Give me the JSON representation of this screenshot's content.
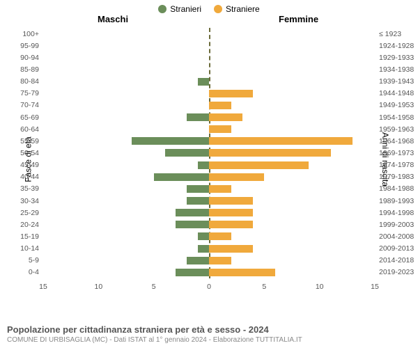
{
  "legend": {
    "male": "Stranieri",
    "female": "Straniere"
  },
  "headers": {
    "male": "Maschi",
    "female": "Femmine"
  },
  "axis": {
    "left_label": "Fasce di età",
    "right_label": "Anni di nascita"
  },
  "colors": {
    "male": "#6b8e5a",
    "female": "#f0a93c",
    "background": "#ffffff",
    "zero_line": "#6b6b3a",
    "tick_text": "#555555"
  },
  "caption": {
    "title": "Popolazione per cittadinanza straniera per età e sesso - 2024",
    "sub": "COMUNE DI URBISAGLIA (MC) - Dati ISTAT al 1° gennaio 2024 - Elaborazione TUTTITALIA.IT"
  },
  "x_ticks": [
    -15,
    -10,
    -5,
    0,
    5,
    10,
    15
  ],
  "x_max": 15,
  "rows": [
    {
      "age": "100+",
      "birth": "≤ 1923",
      "m": 0,
      "f": 0
    },
    {
      "age": "95-99",
      "birth": "1924-1928",
      "m": 0,
      "f": 0
    },
    {
      "age": "90-94",
      "birth": "1929-1933",
      "m": 0,
      "f": 0
    },
    {
      "age": "85-89",
      "birth": "1934-1938",
      "m": 0,
      "f": 0
    },
    {
      "age": "80-84",
      "birth": "1939-1943",
      "m": 1,
      "f": 0
    },
    {
      "age": "75-79",
      "birth": "1944-1948",
      "m": 0,
      "f": 4
    },
    {
      "age": "70-74",
      "birth": "1949-1953",
      "m": 0,
      "f": 2
    },
    {
      "age": "65-69",
      "birth": "1954-1958",
      "m": 2,
      "f": 3
    },
    {
      "age": "60-64",
      "birth": "1959-1963",
      "m": 0,
      "f": 2
    },
    {
      "age": "55-59",
      "birth": "1964-1968",
      "m": 7,
      "f": 13
    },
    {
      "age": "50-54",
      "birth": "1969-1973",
      "m": 4,
      "f": 11
    },
    {
      "age": "45-49",
      "birth": "1974-1978",
      "m": 1,
      "f": 9
    },
    {
      "age": "40-44",
      "birth": "1979-1983",
      "m": 5,
      "f": 5
    },
    {
      "age": "35-39",
      "birth": "1984-1988",
      "m": 2,
      "f": 2
    },
    {
      "age": "30-34",
      "birth": "1989-1993",
      "m": 2,
      "f": 4
    },
    {
      "age": "25-29",
      "birth": "1994-1998",
      "m": 3,
      "f": 4
    },
    {
      "age": "20-24",
      "birth": "1999-2003",
      "m": 3,
      "f": 4
    },
    {
      "age": "15-19",
      "birth": "2004-2008",
      "m": 1,
      "f": 2
    },
    {
      "age": "10-14",
      "birth": "2009-2013",
      "m": 1,
      "f": 4
    },
    {
      "age": "5-9",
      "birth": "2014-2018",
      "m": 2,
      "f": 2
    },
    {
      "age": "0-4",
      "birth": "2019-2023",
      "m": 3,
      "f": 6
    }
  ]
}
